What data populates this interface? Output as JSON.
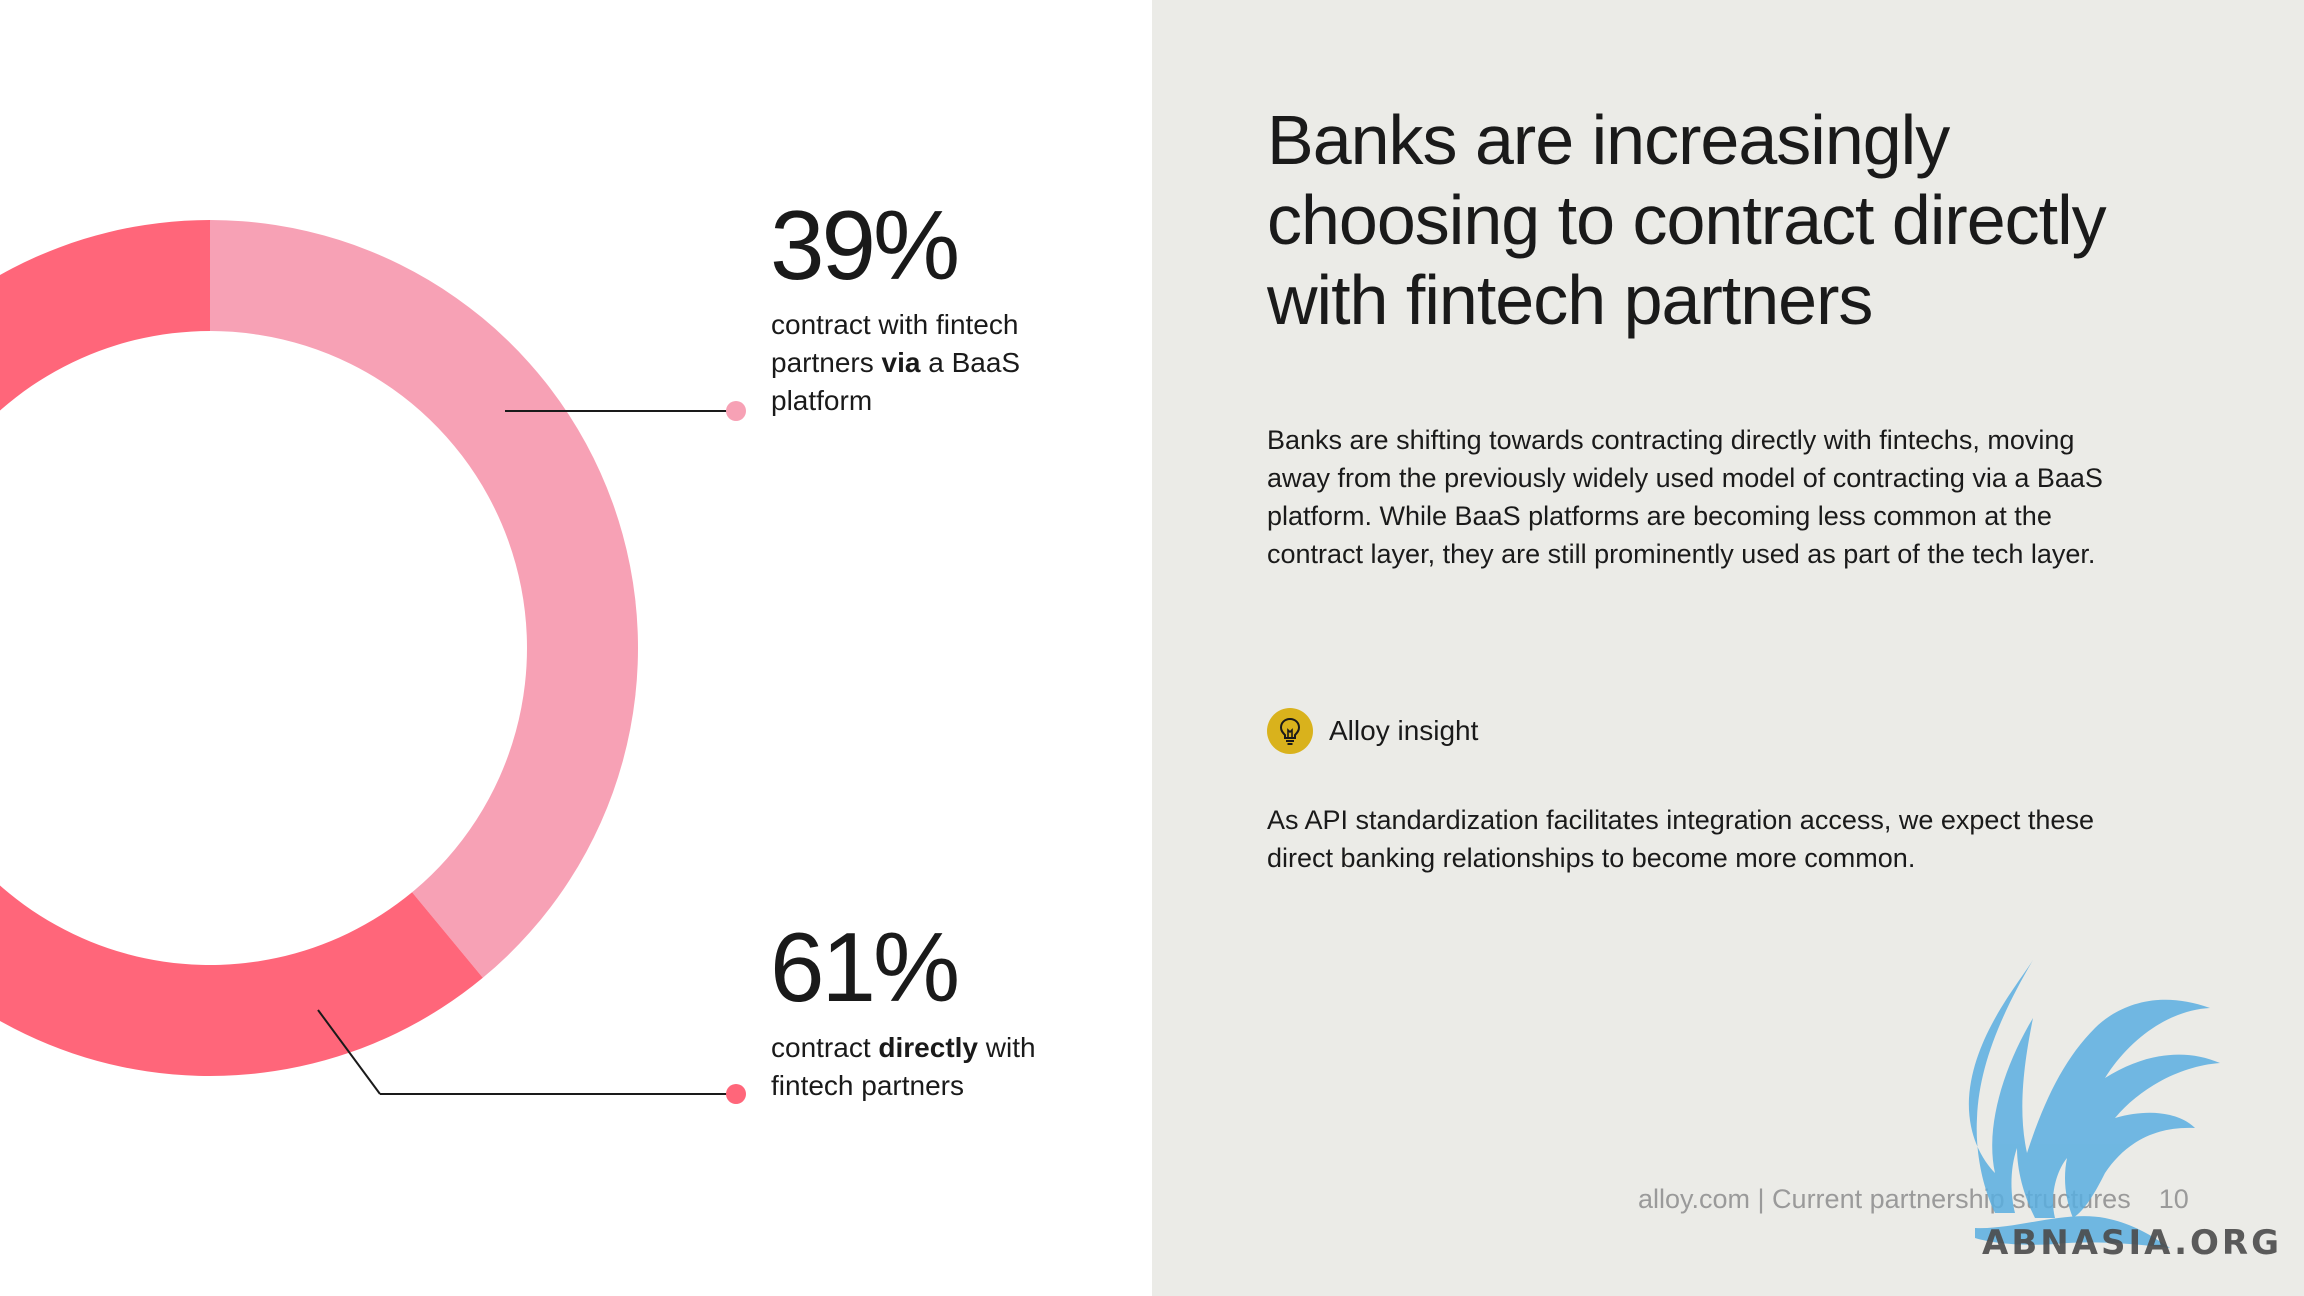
{
  "chart_data": {
    "type": "pie",
    "categories": [
      "contract with fintech partners via a BaaS platform",
      "contract directly with fintech partners"
    ],
    "values": [
      39,
      61
    ],
    "unit": "%",
    "colors": [
      "#f7a1b5",
      "#ff667a"
    ]
  },
  "stats": [
    {
      "value": "39%",
      "desc_pre": "contract with fintech",
      "desc_line2_pre": "partners ",
      "desc_bold": "via",
      "desc_line2_post": " a BaaS",
      "desc_line3": "platform",
      "marker_color": "#f7a1b5"
    },
    {
      "value": "61%",
      "desc_pre": "contract ",
      "desc_bold": "directly",
      "desc_post": " with",
      "desc_line2": "fintech partners",
      "marker_color": "#ff667a"
    }
  ],
  "headline": "Banks are increasingly choosing to contract directly with fintech partners",
  "body": "Banks are shifting towards contracting directly with fintechs, moving away from the previously widely used model of contracting via a BaaS platform. While BaaS platforms are becoming less common at the contract layer, they are still prominently used as part of the tech layer.",
  "insight": {
    "label": "Alloy insight",
    "icon": "lightbulb-icon",
    "text": "As API standardization facilitates integration access, we expect these direct banking relationships to become more common."
  },
  "footer": {
    "source": "alloy.com | Current partnership structures",
    "page": "10"
  },
  "watermark": {
    "text": "ABNASIA.ORG",
    "icon": "phoenix-logo-icon",
    "color": "#5aaee0"
  }
}
